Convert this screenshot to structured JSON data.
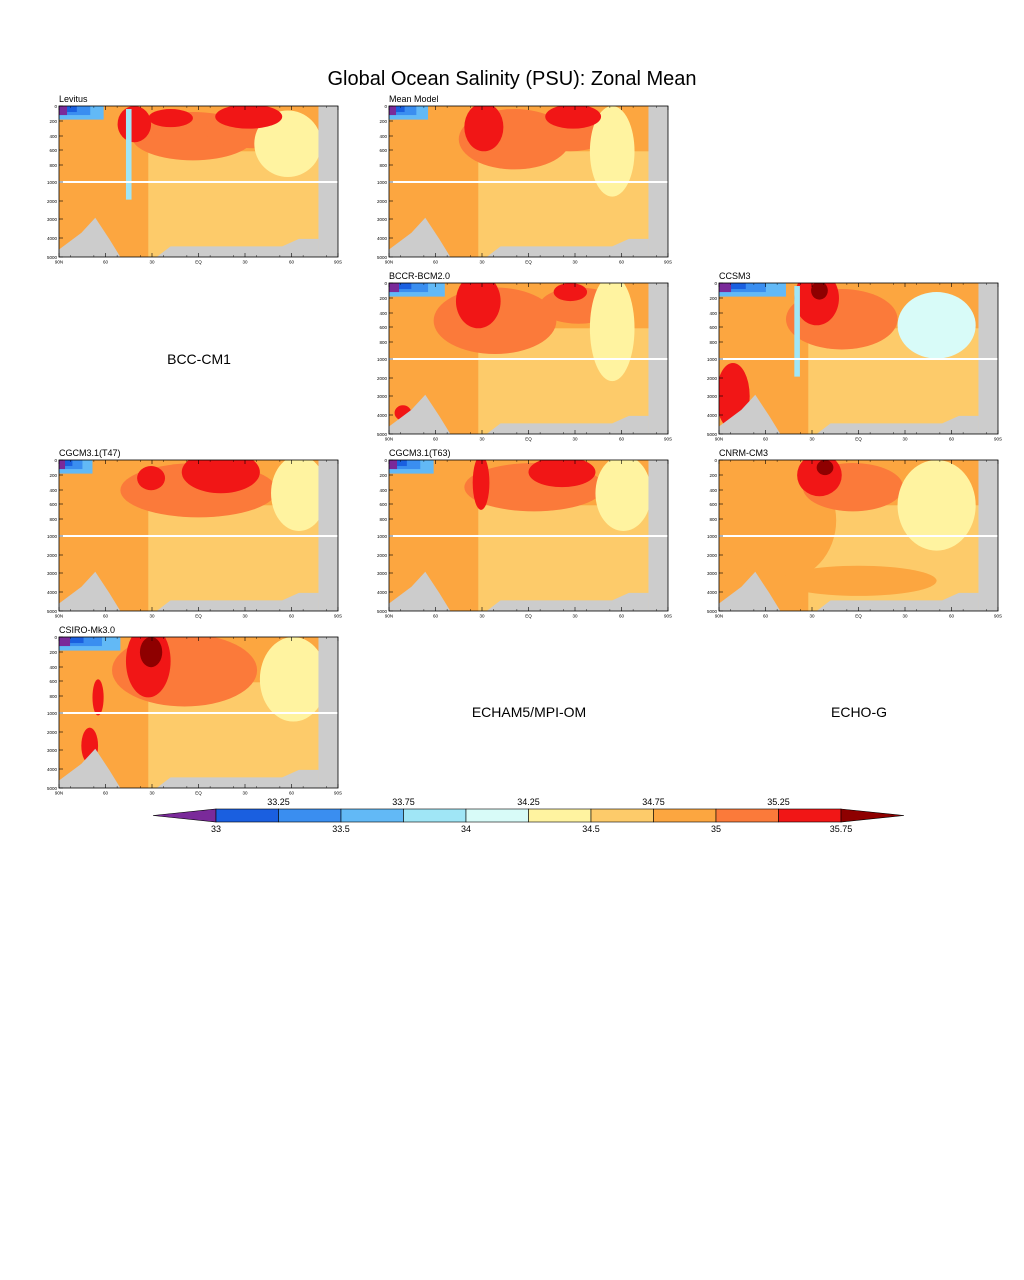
{
  "title": "Global Ocean Salinity (PSU): Zonal Mean",
  "axes": {
    "y_ticks": [
      "0",
      "200",
      "400",
      "600",
      "800",
      "1000",
      "2000",
      "3000",
      "4000",
      "5000"
    ],
    "x_ticks": [
      "90N",
      "60",
      "30",
      "EQ",
      "30",
      "60",
      "90S"
    ]
  },
  "panels": [
    {
      "id": "levitus",
      "label": "Levitus",
      "has_data": true,
      "pos": "row1-col1",
      "style": 0
    },
    {
      "id": "mean-model",
      "label": "Mean Model",
      "has_data": true,
      "pos": "row1-col2",
      "style": 1
    },
    {
      "id": "bcc-cm1",
      "label": "BCC-CM1",
      "has_data": false,
      "pos": "row2-col1"
    },
    {
      "id": "bccr-bcm2",
      "label": "BCCR-BCM2.0",
      "has_data": true,
      "pos": "row2-col2",
      "style": 2
    },
    {
      "id": "ccsm3",
      "label": "CCSM3",
      "has_data": true,
      "pos": "row2-col3",
      "style": 3
    },
    {
      "id": "cgcm-t47",
      "label": "CGCM3.1(T47)",
      "has_data": true,
      "pos": "row3-col1",
      "style": 4
    },
    {
      "id": "cgcm-t63",
      "label": "CGCM3.1(T63)",
      "has_data": true,
      "pos": "row3-col2",
      "style": 5
    },
    {
      "id": "cnrm-cm3",
      "label": "CNRM-CM3",
      "has_data": true,
      "pos": "row3-col3",
      "style": 6
    },
    {
      "id": "csiro-mk3",
      "label": "CSIRO-Mk3.0",
      "has_data": true,
      "pos": "row4-col1",
      "style": 7
    },
    {
      "id": "echam5",
      "label": "ECHAM5/MPI-OM",
      "has_data": false,
      "pos": "row4-col2"
    },
    {
      "id": "echo-g",
      "label": "ECHO-G",
      "has_data": false,
      "pos": "row4-col3"
    }
  ],
  "colorbar": {
    "upper_labels": [
      "33.25",
      "33.75",
      "34.25",
      "34.75",
      "35.25"
    ],
    "lower_labels": [
      "33",
      "33.5",
      "34",
      "34.5",
      "35",
      "35.75"
    ],
    "colors": [
      "#7a2a9a",
      "#1a5fe0",
      "#3a8ef0",
      "#62b9f6",
      "#a0e6f6",
      "#d8fbf8",
      "#fff3a0",
      "#fdcb6a",
      "#fca640",
      "#fb7a3a",
      "#f11616",
      "#8e0000"
    ],
    "low_color": "#7a2a9a",
    "high_color": "#8e0000",
    "land_color": "#cccccc"
  },
  "chart_data": {
    "type": "heatmap",
    "title": "Global Ocean Salinity (PSU): Zonal Mean",
    "x_range": [
      "90N",
      "90S"
    ],
    "y_range": [
      0,
      5000
    ],
    "levels": [
      33,
      33.25,
      33.5,
      33.75,
      34,
      34.25,
      34.5,
      34.75,
      35,
      35.25,
      35.5,
      35.75
    ],
    "panels": [
      "Levitus",
      "Mean Model",
      "BCCR-BCM2.0",
      "CCSM3",
      "CGCM3.1(T47)",
      "CGCM3.1(T63)",
      "CNRM-CM3",
      "CSIRO-Mk3.0"
    ],
    "empty_panels": [
      "BCC-CM1",
      "ECHAM5/MPI-OM",
      "ECHO-G"
    ]
  }
}
